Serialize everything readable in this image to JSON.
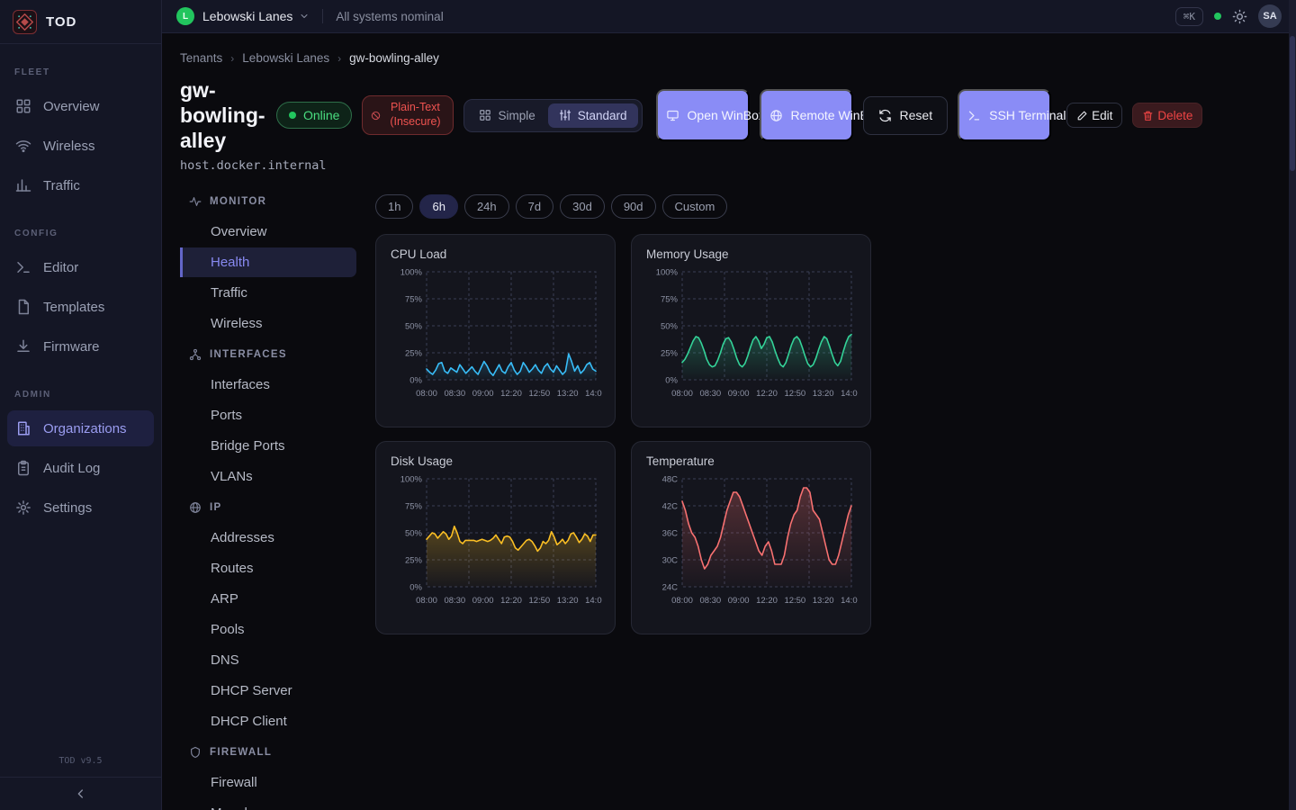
{
  "app": {
    "name": "TOD",
    "version": "TOD v9.5"
  },
  "topbar": {
    "tenant": "Lebowski Lanes",
    "tenant_initial": "L",
    "status_message": "All systems nominal",
    "kbd_shortcut": "⌘K",
    "user_initials": "SA"
  },
  "sidebar": {
    "sections": [
      {
        "label": "FLEET",
        "items": [
          {
            "label": "Overview"
          },
          {
            "label": "Wireless"
          },
          {
            "label": "Traffic"
          }
        ]
      },
      {
        "label": "CONFIG",
        "items": [
          {
            "label": "Editor"
          },
          {
            "label": "Templates"
          },
          {
            "label": "Firmware"
          }
        ]
      },
      {
        "label": "ADMIN",
        "items": [
          {
            "label": "Organizations"
          },
          {
            "label": "Audit Log"
          },
          {
            "label": "Settings"
          }
        ]
      }
    ],
    "active_item": "Organizations"
  },
  "breadcrumb": {
    "items": [
      "Tenants",
      "Lebowski Lanes",
      "gw-bowling-alley"
    ]
  },
  "device": {
    "name": "gw-bowling-alley",
    "host": "host.docker.internal",
    "online_label": "Online",
    "insecure_label": "Plain-Text (Insecure)"
  },
  "view_toggle": {
    "simple": "Simple",
    "standard": "Standard",
    "selected": "Standard"
  },
  "actions": {
    "open_winbox": "Open WinBox",
    "remote_winbox": "Remote WinBox",
    "reset": "Reset",
    "ssh_terminal": "SSH Terminal",
    "edit": "Edit",
    "delete": "Delete"
  },
  "subnav": {
    "sections": [
      {
        "label": "MONITOR",
        "items": [
          "Overview",
          "Health",
          "Traffic",
          "Wireless"
        ]
      },
      {
        "label": "INTERFACES",
        "items": [
          "Interfaces",
          "Ports",
          "Bridge Ports",
          "VLANs"
        ]
      },
      {
        "label": "IP",
        "items": [
          "Addresses",
          "Routes",
          "ARP",
          "Pools",
          "DNS",
          "DHCP Server",
          "DHCP Client"
        ]
      },
      {
        "label": "FIREWALL",
        "items": [
          "Firewall",
          "Mangle"
        ]
      }
    ],
    "active_item": "Health"
  },
  "time_ranges": {
    "options": [
      "1h",
      "6h",
      "24h",
      "7d",
      "30d",
      "90d",
      "Custom"
    ],
    "selected": "6h"
  },
  "chart_data": [
    {
      "type": "line",
      "title": "CPU Load",
      "color": "#38bdf8",
      "ylim": [
        0,
        100
      ],
      "y_ticks": [
        "100%",
        "75%",
        "50%",
        "25%",
        "0%"
      ],
      "x_ticks": [
        "08:00",
        "08:30",
        "09:00",
        "12:20",
        "12:50",
        "13:20",
        "14:00"
      ],
      "grid": "dashed",
      "values": [
        10,
        7,
        5,
        9,
        15,
        16,
        8,
        6,
        11,
        9,
        7,
        14,
        10,
        6,
        9,
        12,
        8,
        5,
        11,
        17,
        13,
        7,
        4,
        9,
        14,
        8,
        6,
        12,
        16,
        9,
        5,
        8,
        16,
        12,
        7,
        10,
        14,
        9,
        6,
        12,
        15,
        10,
        7,
        13,
        9,
        5,
        8,
        24,
        17,
        8,
        13,
        6,
        9,
        14,
        16,
        10,
        8
      ]
    },
    {
      "type": "line",
      "title": "Memory Usage",
      "color": "#34d399",
      "ylim": [
        0,
        100
      ],
      "y_ticks": [
        "100%",
        "75%",
        "50%",
        "25%",
        "0%"
      ],
      "x_ticks": [
        "08:00",
        "08:30",
        "09:00",
        "12:20",
        "12:50",
        "13:20",
        "14:00"
      ],
      "grid": "dashed",
      "values": [
        16,
        19,
        24,
        30,
        36,
        40,
        39,
        34,
        27,
        19,
        14,
        12,
        13,
        18,
        25,
        33,
        38,
        39,
        35,
        28,
        20,
        14,
        12,
        15,
        22,
        30,
        37,
        40,
        36,
        29,
        33,
        39,
        40,
        35,
        27,
        20,
        14,
        12,
        16,
        24,
        32,
        38,
        40,
        37,
        30,
        22,
        15,
        12,
        14,
        20,
        28,
        35,
        40,
        38,
        31,
        23,
        16,
        13,
        17,
        26,
        34,
        40,
        42
      ]
    },
    {
      "type": "line",
      "title": "Disk Usage",
      "color": "#fbbf24",
      "ylim": [
        0,
        100
      ],
      "y_ticks": [
        "100%",
        "75%",
        "50%",
        "25%",
        "0%"
      ],
      "x_ticks": [
        "08:00",
        "08:30",
        "09:00",
        "12:20",
        "12:50",
        "13:20",
        "14:00"
      ],
      "grid": "dashed",
      "values": [
        44,
        47,
        50,
        49,
        45,
        48,
        51,
        49,
        44,
        47,
        56,
        50,
        42,
        40,
        43,
        43,
        43,
        43,
        42,
        43,
        44,
        43,
        42,
        43,
        45,
        48,
        44,
        40,
        46,
        47,
        46,
        42,
        36,
        34,
        37,
        40,
        43,
        44,
        42,
        38,
        33,
        36,
        42,
        40,
        43,
        51,
        46,
        39,
        41,
        44,
        40,
        43,
        49,
        50,
        46,
        41,
        44,
        49,
        47,
        42,
        48,
        48
      ]
    },
    {
      "type": "line",
      "title": "Temperature",
      "color": "#f87171",
      "ylim": [
        24,
        48
      ],
      "y_ticks": [
        "48C",
        "42C",
        "36C",
        "30C",
        "24C"
      ],
      "x_ticks": [
        "08:00",
        "08:30",
        "09:00",
        "12:20",
        "12:50",
        "13:20",
        "14:00"
      ],
      "grid": "dashed",
      "values": [
        43,
        41,
        38,
        36,
        35,
        33,
        30,
        28,
        29,
        31,
        32,
        33,
        35,
        38,
        41,
        43,
        45,
        45,
        44,
        42,
        40,
        38,
        36,
        34,
        32,
        31,
        33,
        34,
        32,
        29,
        29,
        29,
        31,
        35,
        38,
        40,
        41,
        44,
        46,
        46,
        45,
        41,
        40,
        39,
        36,
        33,
        30,
        29,
        29,
        31,
        34,
        37,
        40,
        42
      ]
    }
  ],
  "colors": {
    "accent_purple": "#8a8cf6",
    "online_green": "#4ade80",
    "danger_red": "#ef4444",
    "sidebar_bg": "#141625",
    "card_bg": "#14151d",
    "page_bg": "#0a0a0e"
  }
}
